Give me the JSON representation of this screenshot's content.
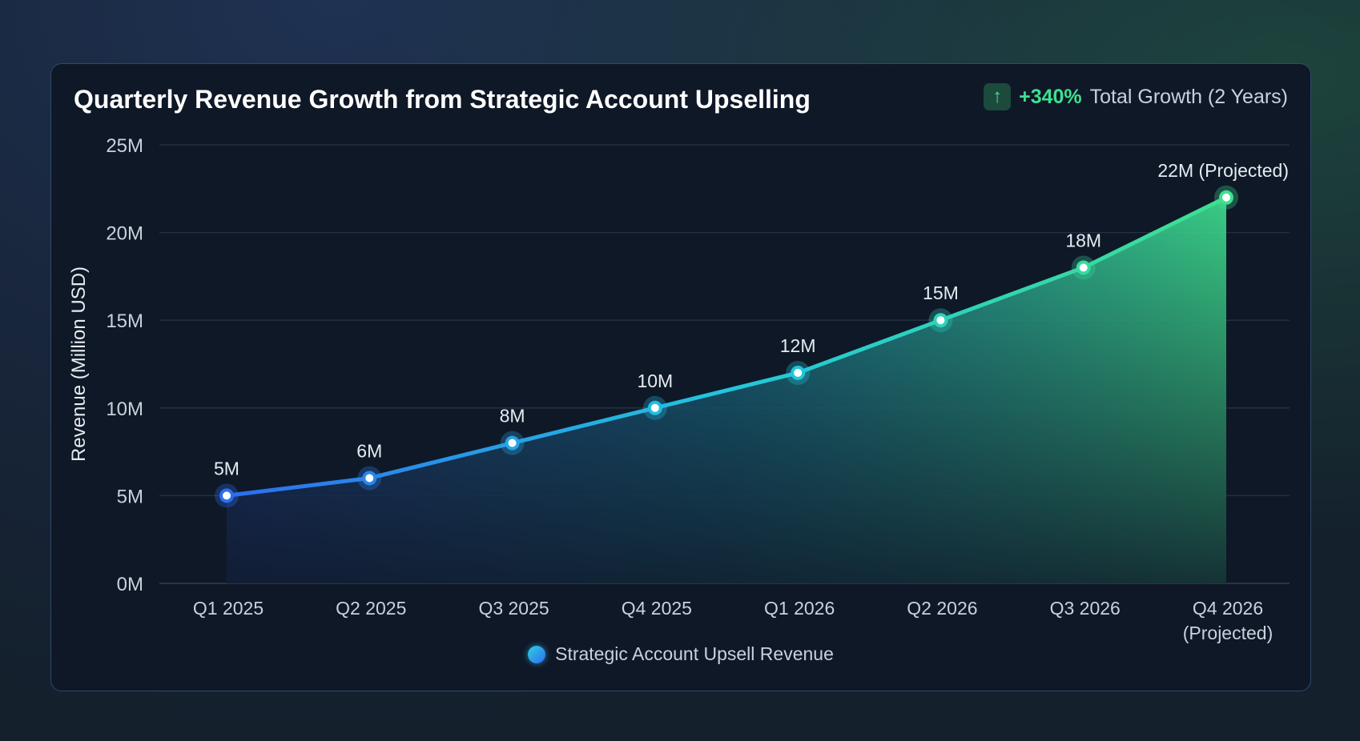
{
  "header": {
    "title": "Quarterly Revenue Growth from Strategic Account Upselling",
    "growth_icon": "arrow-up-icon",
    "growth_value": "+340%",
    "growth_label": "Total Growth (2 Years)"
  },
  "chart_data": {
    "type": "area",
    "title": "Quarterly Revenue Growth from Strategic Account Upselling",
    "xlabel": "",
    "ylabel": "Revenue (Million USD)",
    "ylim": [
      0,
      25
    ],
    "yticks": [
      0,
      5,
      10,
      15,
      20,
      25
    ],
    "ytick_labels": [
      "0M",
      "5M",
      "10M",
      "15M",
      "20M",
      "25M"
    ],
    "categories": [
      "Q1 2025",
      "Q2 2025",
      "Q3 2025",
      "Q4 2025",
      "Q1 2026",
      "Q2 2026",
      "Q3 2026",
      "Q4 2026\n(Projected)"
    ],
    "series": [
      {
        "name": "Strategic Account Upsell Revenue",
        "values": [
          5,
          6,
          8,
          10,
          12,
          15,
          18,
          22
        ],
        "data_labels": [
          "5M",
          "6M",
          "8M",
          "10M",
          "12M",
          "15M",
          "18M",
          "22M (Projected)"
        ]
      }
    ],
    "grid": true,
    "legend": "bottom-center",
    "colors": {
      "start": "#2d6ef0",
      "mid": "#22c6dc",
      "end": "#3ee08f"
    }
  }
}
